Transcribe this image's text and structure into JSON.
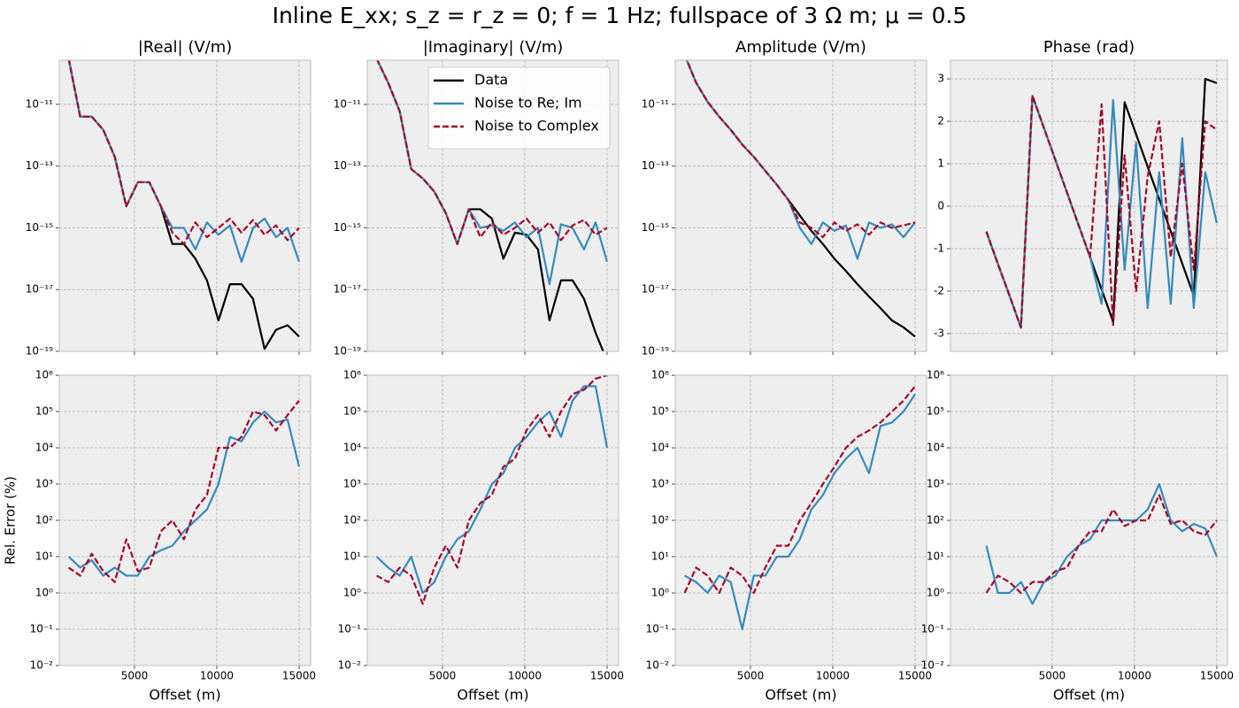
{
  "title": "Inline E_xx; s_z = r_z = 0; f = 1 Hz; fullspace of 3 Ω m; μ = 0.5",
  "chart_data": [
    {
      "type": "line",
      "title": "|Real| (V/m)",
      "yscale": "log",
      "grid": true,
      "show_xtick_labels": false,
      "xlim": [
        430,
        15700
      ],
      "xticks": [
        5000,
        10000,
        15000
      ],
      "ylim": [
        1e-19,
        2.7e-10
      ],
      "yticks": [
        {
          "value": 1e-11,
          "label": "10⁻¹¹"
        },
        {
          "value": 1e-13,
          "label": "10⁻¹³"
        },
        {
          "value": 1e-15,
          "label": "10⁻¹⁵"
        },
        {
          "value": 1e-17,
          "label": "10⁻¹⁷"
        },
        {
          "value": 1e-19,
          "label": "10⁻¹⁹"
        }
      ],
      "x": [
        1000,
        1700,
        2400,
        3100,
        3800,
        4500,
        5200,
        5900,
        6600,
        7300,
        8000,
        8700,
        9400,
        10100,
        10800,
        11500,
        12200,
        12900,
        13600,
        14300,
        15000
      ],
      "series": [
        {
          "color": "#000000",
          "linestyle": "solid",
          "values": [
            3e-10,
            4e-12,
            4e-12,
            1.5e-12,
            2e-13,
            5e-15,
            3e-14,
            3e-14,
            5e-15,
            3e-16,
            3e-16,
            1e-16,
            2e-17,
            1e-18,
            1.5e-17,
            1.5e-17,
            5e-18,
            1.2e-19,
            5e-19,
            7e-19,
            3e-19
          ]
        },
        {
          "color": "#348abd",
          "linestyle": "solid",
          "values": [
            3e-10,
            4e-12,
            4e-12,
            1.5e-12,
            2e-13,
            5e-15,
            3e-14,
            3e-14,
            5e-15,
            1e-15,
            1e-15,
            2e-16,
            1.5e-15,
            6e-16,
            1.2e-15,
            8e-17,
            1e-15,
            2e-15,
            5e-16,
            1e-15,
            8e-17
          ]
        },
        {
          "color": "#a60628",
          "linestyle": "dashed",
          "values": [
            3e-10,
            4e-12,
            4e-12,
            1.5e-12,
            2e-13,
            5e-15,
            3e-14,
            3e-14,
            5e-15,
            7e-16,
            3e-16,
            1.5e-15,
            5e-16,
            1e-15,
            2e-15,
            7e-16,
            1.8e-15,
            6e-16,
            1.2e-15,
            4e-16,
            1e-15
          ]
        }
      ]
    },
    {
      "type": "line",
      "title": "|Imaginary| (V/m)",
      "yscale": "log",
      "grid": true,
      "show_xtick_labels": false,
      "legend": "upper right",
      "xlim": [
        430,
        15700
      ],
      "xticks": [
        5000,
        10000,
        15000
      ],
      "ylim": [
        1e-19,
        2.7e-10
      ],
      "yticks": [
        {
          "value": 1e-11,
          "label": "10⁻¹¹"
        },
        {
          "value": 1e-13,
          "label": "10⁻¹³"
        },
        {
          "value": 1e-15,
          "label": "10⁻¹⁵"
        },
        {
          "value": 1e-17,
          "label": "10⁻¹⁷"
        },
        {
          "value": 1e-19,
          "label": "10⁻¹⁹"
        }
      ],
      "x": [
        1000,
        1700,
        2400,
        3100,
        3800,
        4500,
        5200,
        5900,
        6600,
        7300,
        8000,
        8700,
        9400,
        10100,
        10800,
        11500,
        12200,
        12900,
        13600,
        14300,
        15000
      ],
      "series": [
        {
          "name": "Data",
          "color": "#000000",
          "linestyle": "solid",
          "values": [
            3e-10,
            5e-11,
            6e-12,
            8e-14,
            4e-14,
            1.5e-14,
            3e-15,
            3e-16,
            4e-15,
            4e-15,
            2e-15,
            1e-16,
            7e-16,
            6e-16,
            2e-16,
            1e-18,
            2e-17,
            2e-17,
            5e-18,
            4e-19,
            5e-20
          ]
        },
        {
          "name": "Noise to Re; Im",
          "color": "#348abd",
          "linestyle": "solid",
          "values": [
            3e-10,
            5e-11,
            6e-12,
            8e-14,
            4e-14,
            1.5e-14,
            3e-15,
            3e-16,
            4e-15,
            1e-15,
            1.2e-15,
            8e-16,
            1.5e-15,
            5e-16,
            1e-15,
            1.5e-17,
            1.3e-15,
            1e-15,
            2e-16,
            1.5e-15,
            8e-17
          ]
        },
        {
          "name": "Noise to Complex",
          "color": "#a60628",
          "linestyle": "dashed",
          "values": [
            3e-10,
            5e-11,
            6e-12,
            8e-14,
            4e-14,
            1.5e-14,
            3e-15,
            3e-16,
            4e-15,
            5e-16,
            1.5e-15,
            6e-16,
            1e-15,
            2e-15,
            7e-16,
            1.5e-15,
            4e-16,
            1.2e-15,
            1.8e-15,
            6e-16,
            1e-15
          ]
        }
      ]
    },
    {
      "type": "line",
      "title": "Amplitude (V/m)",
      "yscale": "log",
      "grid": true,
      "show_xtick_labels": false,
      "xlim": [
        430,
        15700
      ],
      "xticks": [
        5000,
        10000,
        15000
      ],
      "ylim": [
        1e-19,
        2.7e-10
      ],
      "yticks": [
        {
          "value": 1e-11,
          "label": "10⁻¹¹"
        },
        {
          "value": 1e-13,
          "label": "10⁻¹³"
        },
        {
          "value": 1e-15,
          "label": "10⁻¹⁵"
        },
        {
          "value": 1e-17,
          "label": "10⁻¹⁷"
        },
        {
          "value": 1e-19,
          "label": "10⁻¹⁹"
        }
      ],
      "x": [
        1000,
        1700,
        2400,
        3100,
        3800,
        4500,
        5200,
        5900,
        6600,
        7300,
        8000,
        8700,
        9400,
        10100,
        10800,
        11500,
        12200,
        12900,
        13600,
        14300,
        15000
      ],
      "series": [
        {
          "color": "#000000",
          "linestyle": "solid",
          "values": [
            4e-10,
            5e-11,
            1.2e-11,
            4e-12,
            1.5e-12,
            5e-13,
            2e-13,
            7e-14,
            2.5e-14,
            8e-15,
            2.5e-15,
            8e-16,
            3e-16,
            1e-16,
            4e-17,
            1.5e-17,
            6e-18,
            2.5e-18,
            1e-18,
            6e-19,
            3e-19
          ]
        },
        {
          "color": "#348abd",
          "linestyle": "solid",
          "values": [
            4e-10,
            5e-11,
            1.2e-11,
            4e-12,
            1.5e-12,
            5e-13,
            2e-13,
            7e-14,
            2.5e-14,
            8e-15,
            1e-15,
            3e-16,
            1.5e-15,
            8e-16,
            1.2e-15,
            1e-16,
            1.5e-15,
            1e-15,
            1.3e-15,
            5e-16,
            1.5e-15
          ]
        },
        {
          "color": "#a60628",
          "linestyle": "dashed",
          "values": [
            4e-10,
            5e-11,
            1.2e-11,
            4e-12,
            1.5e-12,
            5e-13,
            2e-13,
            7e-14,
            2.5e-14,
            8e-15,
            1.5e-15,
            1e-15,
            5e-16,
            1.5e-15,
            8e-16,
            1.3e-15,
            6e-16,
            1.5e-15,
            1e-15,
            1.2e-15,
            1.5e-15
          ]
        }
      ]
    },
    {
      "type": "line",
      "title": "Phase (rad)",
      "yscale": "linear",
      "grid": true,
      "show_xtick_labels": false,
      "xlim": [
        -1180,
        15650
      ],
      "xticks": [
        5000,
        10000,
        15000
      ],
      "ylim": [
        -3.42,
        3.44
      ],
      "yticks": [
        -3,
        -2,
        -1,
        0,
        1,
        2,
        3
      ],
      "x": [
        1000,
        1700,
        2400,
        3100,
        3800,
        4500,
        5200,
        5900,
        6600,
        7300,
        8000,
        8700,
        9400,
        10100,
        10800,
        11500,
        12200,
        12900,
        13600,
        14300,
        15000
      ],
      "series": [
        {
          "color": "#000000",
          "linestyle": "solid",
          "values": [
            -0.6,
            -1.36,
            -2.1,
            -2.86,
            2.6,
            1.84,
            1.08,
            0.32,
            -0.44,
            -1.2,
            -1.96,
            -2.72,
            2.45,
            1.69,
            0.93,
            0.17,
            -0.59,
            -1.35,
            -2.11,
            3.0,
            2.9
          ]
        },
        {
          "color": "#348abd",
          "linestyle": "solid",
          "values": [
            -0.6,
            -1.36,
            -2.1,
            -2.86,
            2.6,
            1.84,
            1.08,
            0.32,
            -0.44,
            -1.2,
            -2.3,
            2.5,
            -1.5,
            1.5,
            -2.4,
            0.8,
            -2.3,
            1.6,
            -2.4,
            0.8,
            -0.4
          ]
        },
        {
          "color": "#a60628",
          "linestyle": "dashed",
          "values": [
            -0.6,
            -1.36,
            -2.1,
            -2.86,
            2.6,
            1.84,
            1.08,
            0.32,
            -0.44,
            -1.2,
            2.4,
            -2.8,
            1.2,
            -2.0,
            0.7,
            2.0,
            -1.2,
            1.0,
            -1.5,
            2.0,
            1.8
          ]
        }
      ]
    },
    {
      "type": "line",
      "yscale": "log",
      "grid": true,
      "show_xtick_labels": true,
      "xlabel": "Offset (m)",
      "ylabel": "Rel. Error (%)",
      "xlim": [
        430,
        15700
      ],
      "xticks": [
        5000,
        10000,
        15000
      ],
      "ylim": [
        0.01,
        1000000
      ],
      "yticks": [
        {
          "value": 0.01,
          "label": "10⁻²"
        },
        {
          "value": 0.1,
          "label": "10⁻¹"
        },
        {
          "value": 1,
          "label": "10⁰"
        },
        {
          "value": 10,
          "label": "10¹"
        },
        {
          "value": 100,
          "label": "10²"
        },
        {
          "value": 1000,
          "label": "10³"
        },
        {
          "value": 10000,
          "label": "10⁴"
        },
        {
          "value": 100000,
          "label": "10⁵"
        },
        {
          "value": 1000000,
          "label": "10⁶"
        }
      ],
      "x": [
        1000,
        1700,
        2400,
        3100,
        3800,
        4500,
        5200,
        5900,
        6600,
        7300,
        8000,
        8700,
        9400,
        10100,
        10800,
        11500,
        12200,
        12900,
        13600,
        14300,
        15000
      ],
      "series": [
        {
          "color": "#348abd",
          "linestyle": "solid",
          "values": [
            10,
            5,
            8,
            3,
            5,
            3,
            3,
            10,
            15,
            20,
            50,
            100,
            200,
            1000,
            20000,
            15000,
            50000,
            100000,
            50000,
            60000,
            3000
          ]
        },
        {
          "color": "#a60628",
          "linestyle": "dashed",
          "values": [
            5,
            3,
            12,
            4,
            2,
            30,
            4,
            5,
            50,
            100,
            30,
            200,
            500,
            10000,
            10000,
            20000,
            100000,
            80000,
            30000,
            80000,
            200000
          ]
        }
      ]
    },
    {
      "type": "line",
      "yscale": "log",
      "grid": true,
      "show_xtick_labels": true,
      "xlabel": "Offset (m)",
      "xlim": [
        430,
        15700
      ],
      "xticks": [
        5000,
        10000,
        15000
      ],
      "ylim": [
        0.01,
        1000000
      ],
      "yticks": [
        {
          "value": 0.01,
          "label": "10⁻²"
        },
        {
          "value": 0.1,
          "label": "10⁻¹"
        },
        {
          "value": 1,
          "label": "10⁰"
        },
        {
          "value": 10,
          "label": "10¹"
        },
        {
          "value": 100,
          "label": "10²"
        },
        {
          "value": 1000,
          "label": "10³"
        },
        {
          "value": 10000,
          "label": "10⁴"
        },
        {
          "value": 100000,
          "label": "10⁵"
        },
        {
          "value": 1000000,
          "label": "10⁶"
        }
      ],
      "x": [
        1000,
        1700,
        2400,
        3100,
        3800,
        4500,
        5200,
        5900,
        6600,
        7300,
        8000,
        8700,
        9400,
        10100,
        10800,
        11500,
        12200,
        12900,
        13600,
        14300,
        15000
      ],
      "series": [
        {
          "color": "#348abd",
          "linestyle": "solid",
          "values": [
            10,
            5,
            3,
            10,
            1,
            2,
            10,
            30,
            50,
            200,
            1000,
            2000,
            10000,
            20000,
            50000,
            100000,
            20000,
            200000,
            500000,
            500000,
            10000
          ]
        },
        {
          "color": "#a60628",
          "linestyle": "dashed",
          "values": [
            3,
            2,
            5,
            3,
            0.5,
            5,
            20,
            5,
            100,
            300,
            500,
            3000,
            5000,
            30000,
            80000,
            20000,
            100000,
            300000,
            400000,
            800000,
            1000000
          ]
        }
      ]
    },
    {
      "type": "line",
      "yscale": "log",
      "grid": true,
      "show_xtick_labels": true,
      "xlabel": "Offset (m)",
      "xlim": [
        430,
        15700
      ],
      "xticks": [
        5000,
        10000,
        15000
      ],
      "ylim": [
        0.01,
        1000000
      ],
      "yticks": [
        {
          "value": 0.01,
          "label": "10⁻²"
        },
        {
          "value": 0.1,
          "label": "10⁻¹"
        },
        {
          "value": 1,
          "label": "10⁰"
        },
        {
          "value": 10,
          "label": "10¹"
        },
        {
          "value": 100,
          "label": "10²"
        },
        {
          "value": 1000,
          "label": "10³"
        },
        {
          "value": 10000,
          "label": "10⁴"
        },
        {
          "value": 100000,
          "label": "10⁵"
        },
        {
          "value": 1000000,
          "label": "10⁶"
        }
      ],
      "x": [
        1000,
        1700,
        2400,
        3100,
        3800,
        4500,
        5200,
        5900,
        6600,
        7300,
        8000,
        8700,
        9400,
        10100,
        10800,
        11500,
        12200,
        12900,
        13600,
        14300,
        15000
      ],
      "series": [
        {
          "color": "#348abd",
          "linestyle": "solid",
          "values": [
            3,
            2,
            1,
            3,
            2,
            0.1,
            3,
            3,
            10,
            10,
            30,
            200,
            500,
            2000,
            5000,
            10000,
            2000,
            40000,
            50000,
            100000,
            300000
          ]
        },
        {
          "color": "#a60628",
          "linestyle": "dashed",
          "values": [
            1,
            5,
            3,
            1,
            5,
            3,
            1,
            5,
            20,
            20,
            100,
            300,
            1000,
            3000,
            10000,
            20000,
            30000,
            50000,
            100000,
            200000,
            500000
          ]
        }
      ]
    },
    {
      "type": "line",
      "yscale": "log",
      "grid": true,
      "show_xtick_labels": true,
      "xlabel": "Offset (m)",
      "xlim": [
        -1180,
        15650
      ],
      "xticks": [
        5000,
        10000,
        15000
      ],
      "ylim": [
        0.01,
        1000000
      ],
      "yticks": [
        {
          "value": 0.01,
          "label": "10⁻²"
        },
        {
          "value": 0.1,
          "label": "10⁻¹"
        },
        {
          "value": 1,
          "label": "10⁰"
        },
        {
          "value": 10,
          "label": "10¹"
        },
        {
          "value": 100,
          "label": "10²"
        },
        {
          "value": 1000,
          "label": "10³"
        },
        {
          "value": 10000,
          "label": "10⁴"
        },
        {
          "value": 100000,
          "label": "10⁵"
        },
        {
          "value": 1000000,
          "label": "10⁶"
        }
      ],
      "x": [
        1000,
        1700,
        2400,
        3100,
        3800,
        4500,
        5200,
        5900,
        6600,
        7300,
        8000,
        8700,
        9400,
        10100,
        10800,
        11500,
        12200,
        12900,
        13600,
        14300,
        15000
      ],
      "series": [
        {
          "color": "#348abd",
          "linestyle": "solid",
          "values": [
            20,
            1,
            1,
            2,
            0.5,
            2,
            3,
            10,
            20,
            30,
            100,
            100,
            100,
            100,
            200,
            1000,
            100,
            50,
            80,
            60,
            10
          ]
        },
        {
          "color": "#a60628",
          "linestyle": "dashed",
          "values": [
            1,
            3,
            2,
            1,
            2,
            2,
            4,
            5,
            20,
            50,
            50,
            200,
            70,
            100,
            100,
            500,
            80,
            100,
            50,
            40,
            100
          ]
        }
      ]
    }
  ]
}
